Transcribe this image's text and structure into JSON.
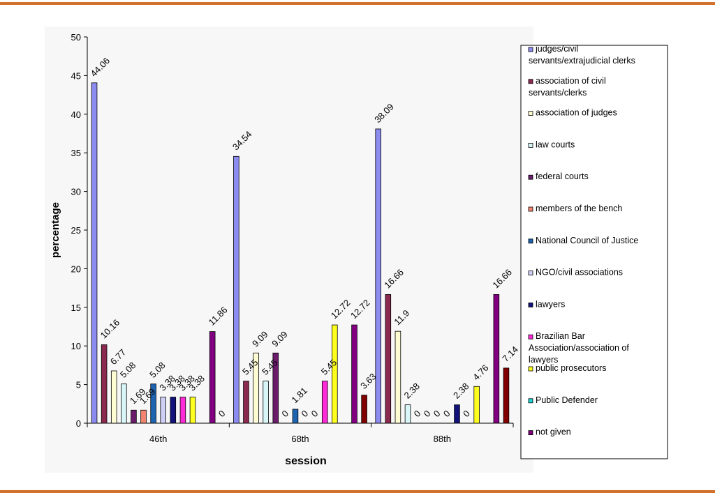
{
  "chart_data": {
    "type": "bar",
    "title": "",
    "xlabel": "session",
    "ylabel": "percentage",
    "ylim": [
      0,
      50
    ],
    "yticks": [
      "0",
      "5",
      "10",
      "15",
      "20",
      "25",
      "30",
      "35",
      "40",
      "45",
      "50"
    ],
    "categories": [
      "46th",
      "68th",
      "88th"
    ],
    "legend_position": "right",
    "series": [
      {
        "name": "judges/civil servants/extrajudicial clerks",
        "color": "#8c8cf0",
        "values": [
          44.06,
          34.54,
          38.09
        ],
        "labels": [
          "44.06",
          "34.54",
          "38.09"
        ]
      },
      {
        "name": "association of civil servants/clerks",
        "color": "#8b2a4f",
        "values": [
          10.16,
          5.45,
          16.66
        ],
        "labels": [
          "10.16",
          "5.45",
          "16.66"
        ]
      },
      {
        "name": "association of judges",
        "color": "#fdfcd2",
        "values": [
          6.77,
          9.09,
          11.9
        ],
        "labels": [
          "6.77",
          "9.09",
          "11.9"
        ]
      },
      {
        "name": "law courts",
        "color": "#d8f6f8",
        "values": [
          5.08,
          5.45,
          2.38
        ],
        "labels": [
          "5.08",
          "5.45",
          "2.38"
        ]
      },
      {
        "name": "federal courts",
        "color": "#6b1c6b",
        "values": [
          1.69,
          9.09,
          0
        ],
        "labels": [
          "1.69",
          "9.09",
          "0"
        ]
      },
      {
        "name": "members of the bench",
        "color": "#f28470",
        "values": [
          1.69,
          0,
          0
        ],
        "labels": [
          "1.69",
          "0",
          "0"
        ]
      },
      {
        "name": "National Council of Justice",
        "color": "#1f64b0",
        "values": [
          5.08,
          1.81,
          0
        ],
        "labels": [
          "5.08",
          "1.81",
          "0"
        ]
      },
      {
        "name": "NGO/civil associations",
        "color": "#cfcff5",
        "values": [
          3.38,
          0,
          0
        ],
        "labels": [
          "3.38",
          "0",
          "0"
        ]
      },
      {
        "name": "lawyers",
        "color": "#12127a",
        "values": [
          3.38,
          0,
          2.38
        ],
        "labels": [
          "3.38",
          "0",
          "2.38"
        ]
      },
      {
        "name": "Brazilian Bar Association/association of lawyers",
        "color": "#ff2bd6",
        "values": [
          3.38,
          5.45,
          0
        ],
        "labels": [
          "3.38",
          "5.45",
          "0"
        ]
      },
      {
        "name": "public prosecutors",
        "color": "#ffff1f",
        "values": [
          3.38,
          12.72,
          4.76
        ],
        "labels": [
          "3.38",
          "12.72",
          "4.76"
        ]
      },
      {
        "name": "Public Defender",
        "color": "#1fd6d6",
        "values": [
          0,
          0,
          0
        ],
        "labels": [
          "",
          "",
          ""
        ]
      },
      {
        "name": "not given",
        "color": "#800080",
        "values": [
          11.86,
          12.72,
          16.66
        ],
        "labels": [
          "11.86",
          "12.72",
          "16.66"
        ]
      },
      {
        "name": "",
        "color": "#800000",
        "values": [
          0,
          3.63,
          7.14
        ],
        "labels": [
          "0",
          "3.63",
          "7.14"
        ]
      }
    ]
  }
}
